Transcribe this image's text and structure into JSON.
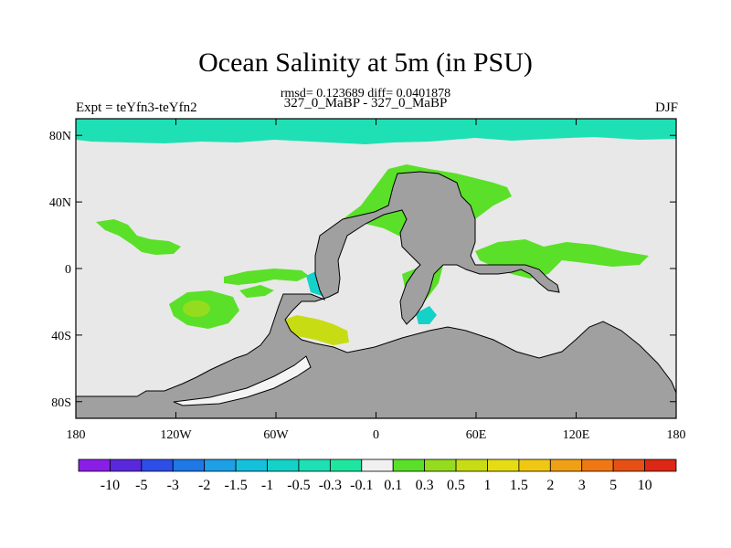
{
  "title": "Ocean Salinity at 5m (in PSU)",
  "subtitle": "rmsd= 0.123689 diff= 0.0401878",
  "left_string": "Expt = teYfn3-teYfn2",
  "center_string": "327_0_MaBP - 327_0_MaBP",
  "right_string": "DJF",
  "colors": {
    "background_field": "#e8e8e8",
    "land": "#a0a0a0",
    "frame": "#000000"
  },
  "chart_data": {
    "type": "heatmap",
    "projection": "cylindrical-equidistant",
    "lon_range": [
      -180,
      180
    ],
    "lat_range": [
      -90,
      90
    ],
    "x_tick_labels": [
      "180",
      "120W",
      "60W",
      "0",
      "60E",
      "120E",
      "180"
    ],
    "x_tick_values": [
      -180,
      -120,
      -60,
      0,
      60,
      120,
      180
    ],
    "y_tick_labels": [
      "80N",
      "40N",
      "0",
      "40S",
      "80S"
    ],
    "y_tick_values": [
      80,
      40,
      0,
      -40,
      -80
    ],
    "colorbar": {
      "labels": [
        "-10",
        "-5",
        "-3",
        "-2",
        "-1.5",
        "-1",
        "-0.5",
        "-0.3",
        "-0.1",
        "0.1",
        "0.3",
        "0.5",
        "1",
        "1.5",
        "2",
        "3",
        "5",
        "10"
      ],
      "colors": [
        "#8a1ee6",
        "#5a28dc",
        "#2e4ee8",
        "#1e78e6",
        "#1ea0e6",
        "#14c0dc",
        "#14d2c8",
        "#1ee0b4",
        "#1ee6a0",
        "#f0f0f0",
        "#5ae028",
        "#96dc1e",
        "#c8dc14",
        "#e6dc14",
        "#f0c814",
        "#f0a014",
        "#f07814",
        "#e65014",
        "#dc2814"
      ]
    },
    "regions": [
      {
        "name": "arctic-band",
        "value_class": "-0.1 to -0.3"
      },
      {
        "name": "north-atlantic",
        "value_class": "0.1 to 0.3"
      },
      {
        "name": "south-pacific-eddy",
        "value_class": "0.1 to 0.5"
      },
      {
        "name": "south-atlantic-inner",
        "value_class": "0.5 to 1"
      }
    ]
  }
}
